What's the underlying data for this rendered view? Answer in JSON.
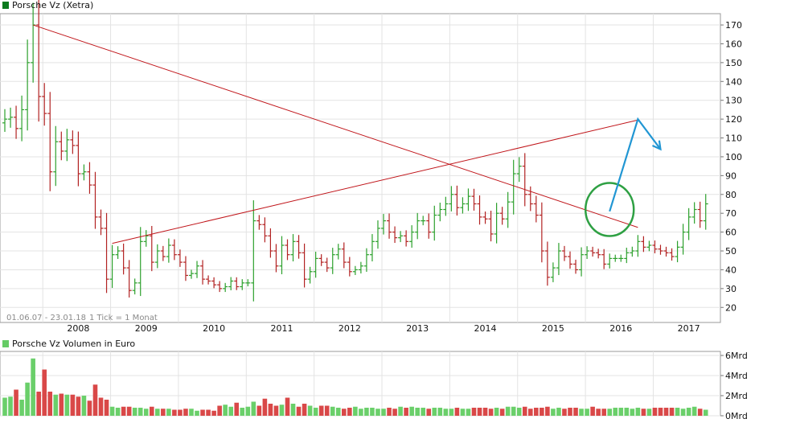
{
  "chart_data": [
    {
      "type": "ohlc",
      "title": "Porsche Vz (Xetra)",
      "legend_color": "#0b7a1e",
      "date_range": "01.06.07 - 23.01.18",
      "tick_info": "1 Tick = 1 Monat",
      "x_tick_labels": [
        "2008",
        "2009",
        "2010",
        "2011",
        "2012",
        "2013",
        "2014",
        "2015",
        "2016",
        "2017"
      ],
      "y_tick_labels": [
        "20",
        "30",
        "40",
        "50",
        "60",
        "70",
        "80",
        "90",
        "100",
        "110",
        "120",
        "130",
        "140",
        "150",
        "160",
        "170"
      ],
      "ylim": [
        12,
        176
      ],
      "y_axis_side": "right",
      "up_color": "#2ca02c",
      "down_color": "#b22222",
      "trendline_color": "#c0151a",
      "close": [
        120,
        121,
        115,
        125,
        150,
        170,
        132,
        123,
        92,
        108,
        103,
        109,
        106,
        91,
        92,
        85,
        68,
        62,
        35,
        48,
        50,
        41,
        29,
        33,
        55,
        58,
        44,
        50,
        47,
        53,
        48,
        44,
        37,
        38,
        42,
        35,
        34,
        32,
        30,
        31,
        34,
        31,
        33,
        33,
        66,
        64,
        58,
        50,
        42,
        53,
        48,
        55,
        49,
        35,
        39,
        46,
        44,
        41,
        48,
        51,
        44,
        39,
        40,
        42,
        48,
        55,
        62,
        66,
        60,
        57,
        58,
        55,
        60,
        66,
        66,
        60,
        69,
        72,
        75,
        80,
        73,
        75,
        79,
        75,
        68,
        67,
        59,
        70,
        67,
        76,
        91,
        95,
        80,
        75,
        69,
        50,
        36,
        41,
        50,
        47,
        43,
        40,
        48,
        50,
        49,
        48,
        43,
        46,
        46,
        46,
        49,
        50,
        55,
        52,
        53,
        51,
        50,
        49,
        47,
        52,
        60,
        68,
        72,
        66,
        75
      ],
      "trendlines": [
        {
          "from": [
            5,
            170
          ],
          "to": [
            112,
            62.5
          ]
        },
        {
          "from": [
            19,
            54
          ],
          "to": [
            112,
            119.5
          ]
        }
      ],
      "annotations": [
        {
          "type": "circle",
          "index": 107,
          "value": 72,
          "color": "#2ea043"
        },
        {
          "type": "arrow",
          "color": "#2196d3",
          "path": [
            [
              107,
              71
            ],
            [
              112,
              120
            ],
            [
              116,
              104
            ]
          ]
        }
      ]
    },
    {
      "type": "bar",
      "title": "Porsche Vz Volumen in Euro",
      "legend_color": "#66cc66",
      "y_tick_labels": [
        "0Mrd",
        "2Mrd",
        "4Mrd",
        "6Mrd"
      ],
      "ylim": [
        0,
        6
      ],
      "up_color": "#6acf6a",
      "down_color": "#d94848",
      "values": [
        1.8,
        1.9,
        2.6,
        1.6,
        3.3,
        5.7,
        2.4,
        4.6,
        2.4,
        2.1,
        2.2,
        2.1,
        2.1,
        1.9,
        2.0,
        1.5,
        3.1,
        1.8,
        1.6,
        0.9,
        0.8,
        0.9,
        0.9,
        0.8,
        0.8,
        0.7,
        0.9,
        0.7,
        0.7,
        0.7,
        0.6,
        0.6,
        0.7,
        0.7,
        0.5,
        0.6,
        0.6,
        0.5,
        1.0,
        1.1,
        0.9,
        1.3,
        0.8,
        0.9,
        1.4,
        1.0,
        1.7,
        1.2,
        1.0,
        1.1,
        1.8,
        1.2,
        0.9,
        1.2,
        1.0,
        0.8,
        1.0,
        1.0,
        0.9,
        0.8,
        0.7,
        0.8,
        0.9,
        0.7,
        0.8,
        0.8,
        0.7,
        0.7,
        0.8,
        0.7,
        0.9,
        0.8,
        0.9,
        0.8,
        0.8,
        0.7,
        0.8,
        0.8,
        0.7,
        0.7,
        0.8,
        0.7,
        0.7,
        0.8,
        0.8,
        0.8,
        0.7,
        0.8,
        0.7,
        0.9,
        0.9,
        0.8,
        0.9,
        0.7,
        0.8,
        0.8,
        0.9,
        0.7,
        0.8,
        0.7,
        0.8,
        0.8,
        0.7,
        0.7,
        0.9,
        0.7,
        0.7,
        0.7,
        0.8,
        0.8,
        0.8,
        0.7,
        0.8,
        0.7,
        0.7,
        0.8,
        0.8,
        0.8,
        0.8,
        0.8,
        0.7,
        0.8,
        0.9,
        0.7,
        0.6
      ]
    }
  ]
}
